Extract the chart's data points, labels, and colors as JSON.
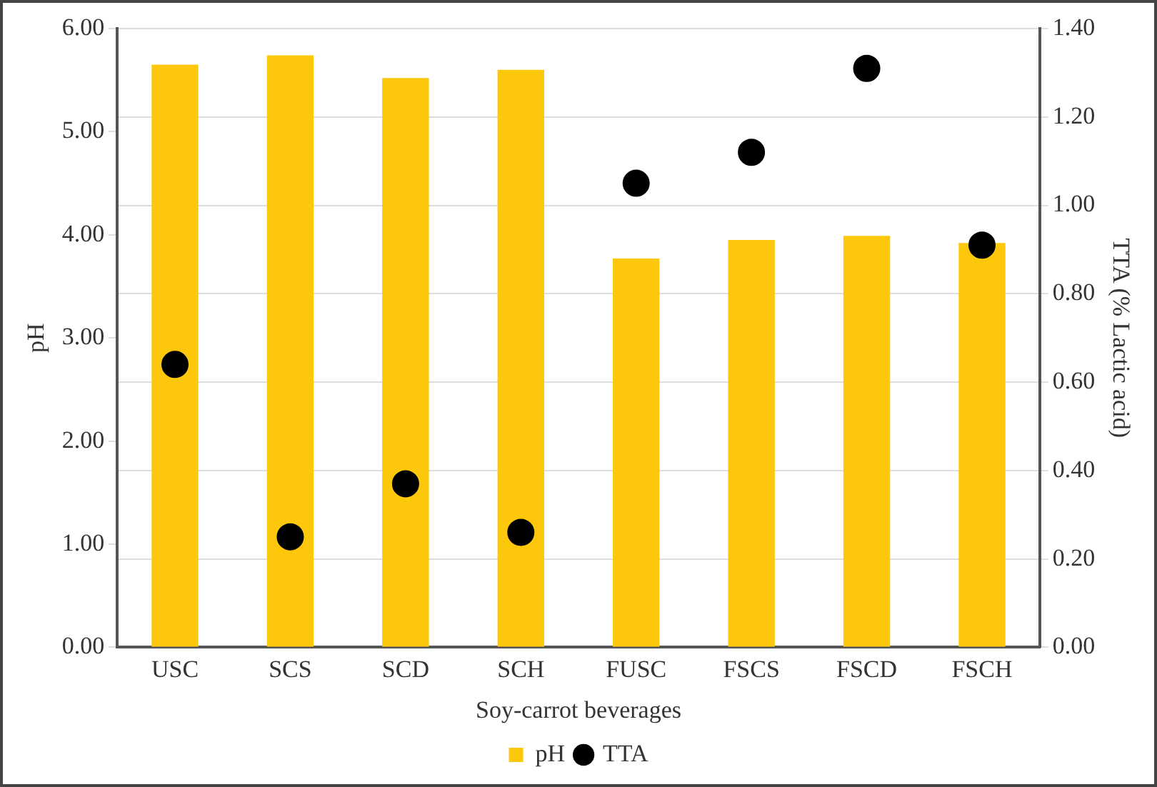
{
  "chart_data": {
    "type": "bar",
    "xlabel": "Soy-carrot beverages",
    "ylabel": "pH",
    "y2label": "TTA (% Lactic acid)",
    "categories": [
      "USC",
      "SCS",
      "SCD",
      "SCH",
      "FUSC",
      "FSCS",
      "FSCD",
      "FSCH"
    ],
    "series": [
      {
        "name": "pH",
        "color": "#fdc70c",
        "values": [
          5.65,
          5.74,
          5.52,
          5.6,
          3.77,
          3.95,
          3.99,
          3.92
        ]
      },
      {
        "name": "TTA",
        "type": "scatter",
        "axis": "y2",
        "color": "#000000",
        "marker": "circle",
        "values": [
          0.64,
          0.25,
          0.37,
          0.26,
          1.05,
          1.12,
          1.31,
          0.91
        ]
      }
    ],
    "ylim": [
      0,
      6
    ],
    "yticks": [
      {
        "value": 0,
        "label": "0.00"
      },
      {
        "value": 1,
        "label": "1.00"
      },
      {
        "value": 2,
        "label": "2.00"
      },
      {
        "value": 3,
        "label": "3.00"
      },
      {
        "value": 4,
        "label": "4.00"
      },
      {
        "value": 5,
        "label": "5.00"
      },
      {
        "value": 6,
        "label": "6.00"
      }
    ],
    "y2lim": [
      0,
      1.4
    ],
    "y2ticks": [
      {
        "value": 0,
        "label": "0.00"
      },
      {
        "value": 0.2,
        "label": "0.20"
      },
      {
        "value": 0.4,
        "label": "0.40"
      },
      {
        "value": 0.6,
        "label": "0.60"
      },
      {
        "value": 0.8,
        "label": "0.80"
      },
      {
        "value": 1,
        "label": "1.00"
      },
      {
        "value": 1.2,
        "label": "1.20"
      },
      {
        "value": 1.4,
        "label": "1.40"
      }
    ],
    "grid": true,
    "legend": "bottom"
  }
}
